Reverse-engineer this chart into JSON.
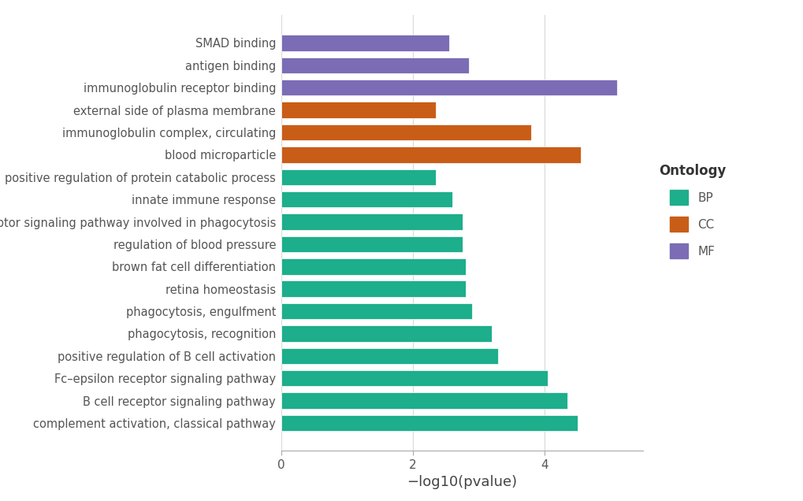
{
  "categories": [
    "SMAD binding",
    "antigen binding",
    "immunoglobulin receptor binding",
    "external side of plasma membrane",
    "immunoglobulin complex, circulating",
    "blood microparticle",
    "positive regulation of protein catabolic process",
    "innate immune response",
    "Fc–gamma receptor signaling pathway involved in phagocytosis",
    "regulation of blood pressure",
    "brown fat cell differentiation",
    "retina homeostasis",
    "phagocytosis, engulfment",
    "phagocytosis, recognition",
    "positive regulation of B cell activation",
    "Fc–epsilon receptor signaling pathway",
    "B cell receptor signaling pathway",
    "complement activation, classical pathway"
  ],
  "values": [
    2.55,
    2.85,
    5.1,
    2.35,
    3.8,
    4.55,
    2.35,
    2.6,
    2.75,
    2.75,
    2.8,
    2.8,
    2.9,
    3.2,
    3.3,
    4.05,
    4.35,
    4.5
  ],
  "ontology": [
    "MF",
    "MF",
    "MF",
    "CC",
    "CC",
    "CC",
    "BP",
    "BP",
    "BP",
    "BP",
    "BP",
    "BP",
    "BP",
    "BP",
    "BP",
    "BP",
    "BP",
    "BP"
  ],
  "colors": {
    "BP": "#1DAE8B",
    "CC": "#C85D17",
    "MF": "#7B6CB5"
  },
  "legend_title": "Ontology",
  "xlabel": "−log10(pvalue)",
  "xlim": [
    0,
    5.5
  ],
  "xticks": [
    0,
    2,
    4
  ],
  "background_color": "#FFFFFF",
  "grid_color": "#D9D9D9",
  "bar_height": 0.72,
  "label_fontsize": 10.5,
  "tick_fontsize": 11,
  "xlabel_fontsize": 13,
  "legend_fontsize": 11,
  "legend_title_fontsize": 12
}
